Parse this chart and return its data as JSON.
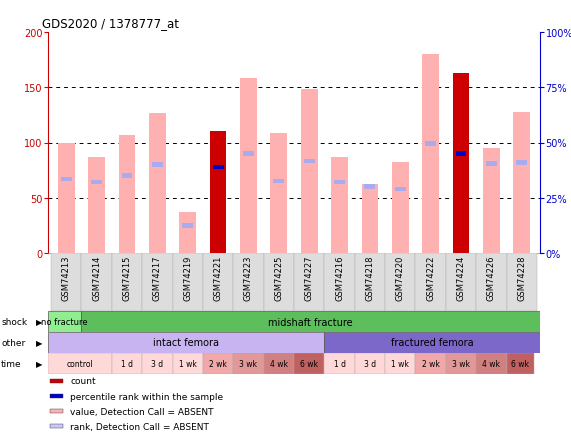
{
  "title": "GDS2020 / 1378777_at",
  "samples": [
    "GSM74213",
    "GSM74214",
    "GSM74215",
    "GSM74217",
    "GSM74219",
    "GSM74221",
    "GSM74223",
    "GSM74225",
    "GSM74227",
    "GSM74216",
    "GSM74218",
    "GSM74220",
    "GSM74222",
    "GSM74224",
    "GSM74226",
    "GSM74228"
  ],
  "bar_pink": [
    100,
    87,
    107,
    127,
    37,
    0,
    158,
    109,
    148,
    87,
    62,
    82,
    180,
    0,
    95,
    128
  ],
  "bar_red": [
    0,
    0,
    0,
    0,
    0,
    110,
    0,
    0,
    0,
    0,
    0,
    0,
    0,
    163,
    0,
    0
  ],
  "rank_blue_dark": [
    0,
    0,
    0,
    0,
    0,
    78,
    0,
    0,
    0,
    0,
    0,
    0,
    0,
    90,
    0,
    0
  ],
  "rank_pink_light": [
    67,
    64,
    70,
    80,
    25,
    0,
    90,
    65,
    83,
    64,
    60,
    58,
    99,
    0,
    81,
    82
  ],
  "ylim_left": [
    0,
    200
  ],
  "ylim_right": [
    0,
    100
  ],
  "yticks_left": [
    0,
    50,
    100,
    150,
    200
  ],
  "yticks_right": [
    0,
    25,
    50,
    75,
    100
  ],
  "ytick_labels_right": [
    "0%",
    "25%",
    "50%",
    "75%",
    "100%"
  ],
  "shock_no_fracture_label": "no fracture",
  "shock_midshaft_label": "midshaft fracture",
  "shock_no_fracture_color": "#90EE90",
  "shock_midshaft_color": "#5CBF5C",
  "other_intact_label": "intact femora",
  "other_fractured_label": "fractured femora",
  "other_intact_color": "#C8B4F0",
  "other_fractured_color": "#7B68C8",
  "time_labels": [
    "control",
    "1 d",
    "3 d",
    "1 wk",
    "2 wk",
    "3 wk",
    "4 wk",
    "6 wk",
    "1 d",
    "3 d",
    "1 wk",
    "2 wk",
    "3 wk",
    "4 wk",
    "6 wk"
  ],
  "time_colors": [
    "#FFD8D8",
    "#FFD8D8",
    "#FFD8D8",
    "#FFD8D8",
    "#F0A8A8",
    "#E09898",
    "#D08080",
    "#C06060",
    "#FFD8D8",
    "#FFD8D8",
    "#FFD8D8",
    "#F0A8A8",
    "#E09898",
    "#D08080",
    "#C06060"
  ],
  "legend_items": [
    {
      "color": "#CC0000",
      "label": "count"
    },
    {
      "color": "#0000CC",
      "label": "percentile rank within the sample"
    },
    {
      "color": "#FFB0B0",
      "label": "value, Detection Call = ABSENT"
    },
    {
      "color": "#C8C8FF",
      "label": "rank, Detection Call = ABSENT"
    }
  ],
  "bar_width": 0.55,
  "left_axis_color": "#CC0000",
  "right_axis_color": "#0000CC",
  "gsm_bg_color": "#CCCCCC",
  "gsm_box_colors": [
    "#DDDDDD",
    "#CCCCCC"
  ]
}
